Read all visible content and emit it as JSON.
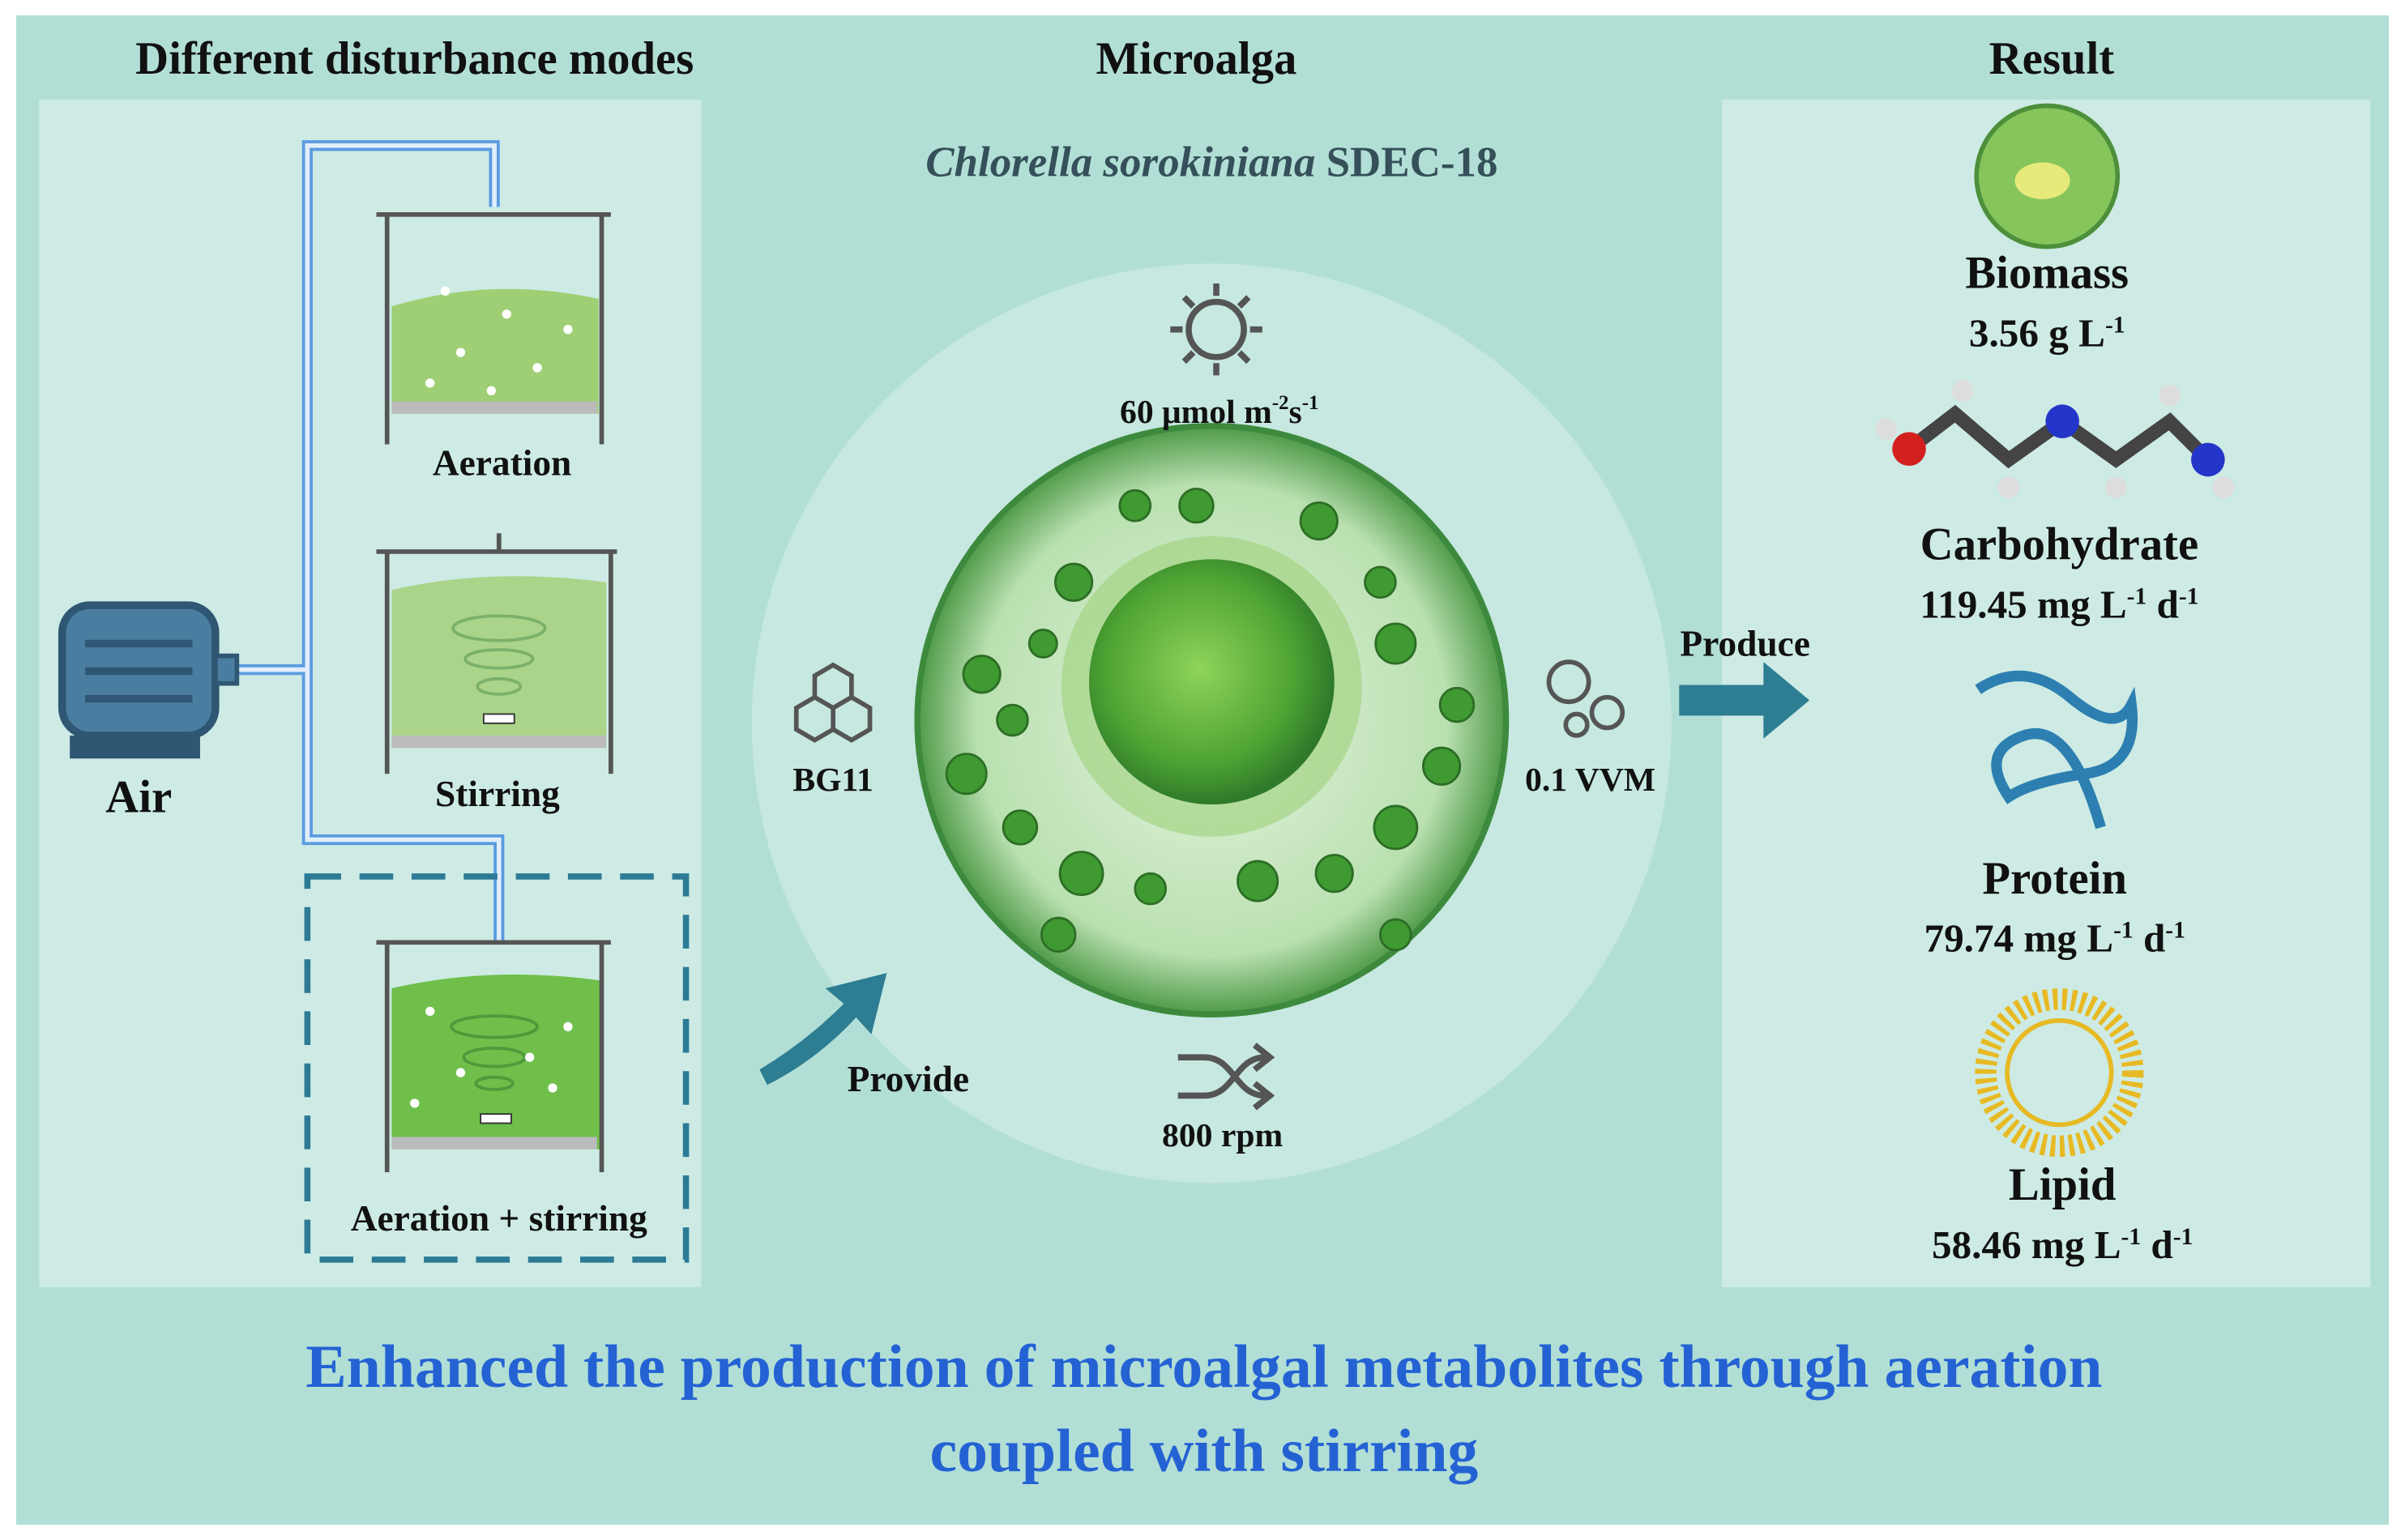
{
  "header": {
    "left": "Different disturbance modes",
    "center": "Microalga",
    "right": "Result"
  },
  "modes": {
    "source": "Air",
    "reactors": [
      "Aeration",
      "Stirring",
      "Aeration + stirring"
    ]
  },
  "microalga": {
    "species": "Chlorella sorokiniana",
    "strain": "SDEC-18",
    "light": [
      {
        "text": "60 μmol m"
      },
      {
        "sup": "-2"
      },
      {
        "text": "s"
      },
      {
        "sup": "-1"
      }
    ],
    "medium": "BG11",
    "aeration": "0.1 VVM",
    "stirring": "800 rpm"
  },
  "arrows": {
    "provide": "Provide",
    "produce": "Produce"
  },
  "results": [
    {
      "name": "Biomass",
      "value": [
        {
          "text": "3.56 g L"
        },
        {
          "sup": "-1"
        }
      ]
    },
    {
      "name": "Carbohydrate",
      "value": [
        {
          "text": "119.45 mg L"
        },
        {
          "sup": "-1"
        },
        {
          "text": " d"
        },
        {
          "sup": "-1"
        }
      ]
    },
    {
      "name": "Protein",
      "value": [
        {
          "text": "79.74 mg L"
        },
        {
          "sup": "-1"
        },
        {
          "text": " d"
        },
        {
          "sup": "-1"
        }
      ]
    },
    {
      "name": "Lipid",
      "value": [
        {
          "text": "58.46 mg L"
        },
        {
          "sup": "-1"
        },
        {
          "text": " d"
        },
        {
          "sup": "-1"
        }
      ]
    }
  ],
  "footer": {
    "lines": [
      "Enhanced the production of microalgal metabolites through aeration",
      "coupled with stirring"
    ]
  }
}
